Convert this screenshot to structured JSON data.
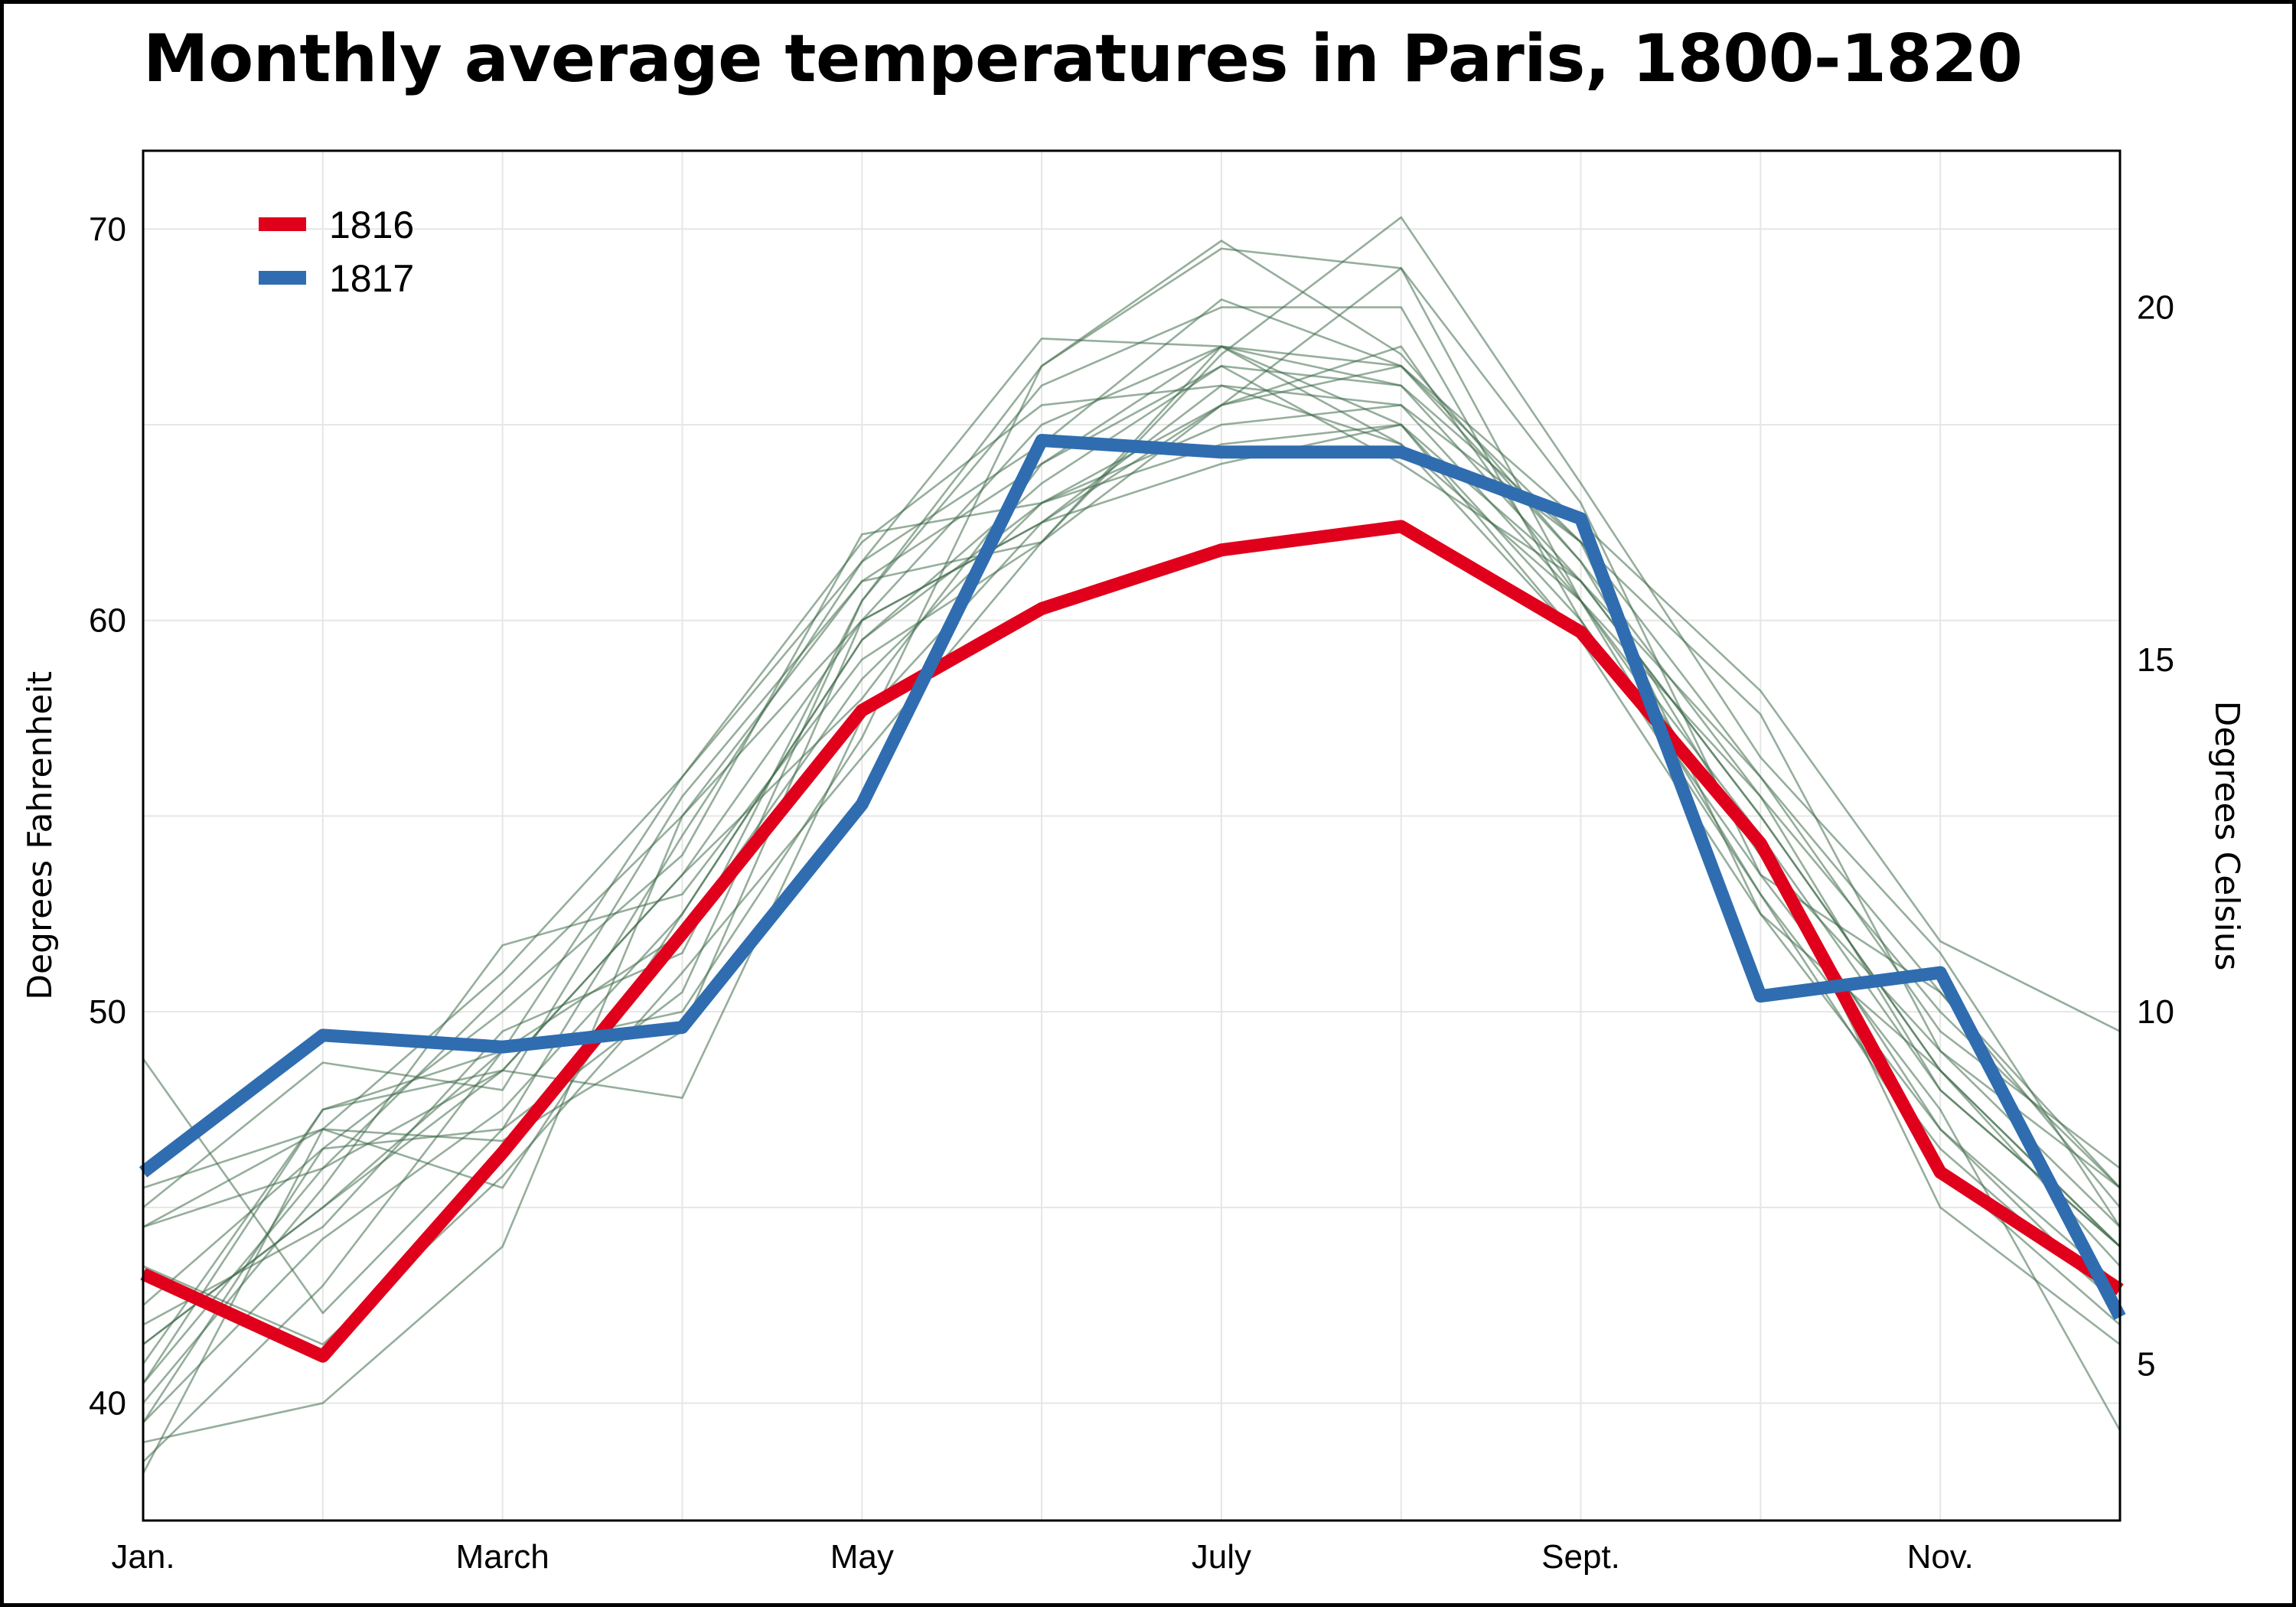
{
  "title": "Monthly average temperatures in Paris, 1800-1820",
  "colors": {
    "highlight_1816": "#e0001b",
    "highlight_1817": "#2f6db0",
    "background_years": "#3f6b4a",
    "gridline": "#e6e6e6",
    "axis": "#000000"
  },
  "chart_data": {
    "type": "line",
    "title": "Monthly average temperatures in Paris, 1800-1820",
    "xlabel": "",
    "ylabel": "Degrees Fahrenheit",
    "y2label": "Degrees Celsius",
    "x_ticks": [
      "Jan.",
      "March",
      "May",
      "July",
      "Sept.",
      "Nov."
    ],
    "x_tick_months": [
      1,
      3,
      5,
      7,
      9,
      11
    ],
    "months": [
      1,
      2,
      3,
      4,
      5,
      6,
      7,
      8,
      9,
      10,
      11,
      12
    ],
    "xlim": [
      1,
      12
    ],
    "ylim": [
      37.0,
      72.0
    ],
    "y_ticks": [
      40,
      50,
      60,
      70
    ],
    "y2_ticks": [
      5,
      10,
      15,
      20
    ],
    "y2_unit": "celsius",
    "grid": true,
    "legend_position": "top-left",
    "highlighted_series": [
      {
        "name": "1816",
        "color_key": "highlight_1816",
        "values": [
          43.3,
          41.2,
          46.4,
          52.0,
          57.7,
          60.3,
          61.8,
          62.4,
          59.7,
          54.3,
          45.9,
          42.9
        ]
      },
      {
        "name": "1817",
        "color_key": "highlight_1817",
        "values": [
          45.9,
          49.4,
          49.1,
          49.6,
          55.3,
          64.6,
          64.3,
          64.3,
          62.6,
          50.4,
          51.0,
          42.2
        ]
      }
    ],
    "background_series": [
      [
        39.5,
        44.2,
        47.5,
        52.5,
        59.5,
        63.5,
        66.5,
        66.0,
        61.0,
        55.0,
        48.5,
        43.5
      ],
      [
        41.5,
        45.0,
        48.5,
        53.5,
        60.0,
        62.5,
        66.0,
        65.5,
        60.5,
        54.0,
        49.0,
        44.5
      ],
      [
        44.5,
        46.0,
        50.5,
        55.0,
        61.0,
        64.0,
        67.0,
        66.0,
        62.0,
        56.0,
        50.5,
        45.0
      ],
      [
        38.5,
        43.0,
        49.0,
        52.0,
        58.5,
        63.0,
        65.5,
        69.0,
        60.5,
        55.5,
        48.0,
        44.0
      ],
      [
        48.8,
        42.3,
        47.0,
        50.5,
        60.5,
        66.5,
        69.7,
        66.8,
        61.5,
        55.5,
        50.0,
        45.5
      ],
      [
        40.0,
        45.5,
        51.7,
        53.0,
        59.0,
        62.0,
        66.8,
        70.3,
        63.5,
        56.5,
        51.5,
        44.5
      ],
      [
        42.5,
        46.5,
        47.0,
        54.5,
        61.5,
        64.5,
        68.2,
        66.5,
        61.5,
        54.0,
        47.0,
        43.0
      ],
      [
        39.0,
        40.0,
        44.0,
        55.0,
        60.0,
        65.0,
        67.0,
        65.0,
        60.0,
        53.0,
        46.0,
        42.0
      ],
      [
        41.0,
        47.5,
        49.0,
        56.0,
        62.0,
        65.5,
        66.0,
        64.5,
        60.5,
        53.0,
        47.0,
        42.5
      ],
      [
        45.5,
        47.0,
        45.5,
        52.5,
        59.5,
        63.0,
        64.5,
        65.0,
        61.0,
        56.0,
        49.5,
        46.0
      ],
      [
        40.5,
        46.0,
        48.5,
        47.8,
        57.5,
        62.5,
        64.0,
        65.0,
        59.5,
        54.5,
        45.0,
        41.5
      ],
      [
        43.5,
        41.5,
        45.8,
        51.0,
        56.5,
        62.0,
        65.5,
        66.5,
        62.5,
        58.2,
        51.8,
        49.5
      ],
      [
        42.0,
        44.5,
        49.5,
        51.5,
        60.5,
        66.0,
        68.0,
        68.0,
        60.0,
        53.5,
        50.5,
        45.5
      ],
      [
        44.5,
        47.0,
        51.0,
        56.0,
        61.5,
        67.2,
        67.0,
        64.5,
        59.5,
        52.5,
        48.5,
        44.0
      ],
      [
        39.5,
        46.5,
        50.0,
        54.0,
        62.2,
        63.0,
        65.0,
        65.5,
        62.0,
        52.5,
        46.5,
        42.5
      ],
      [
        40.5,
        47.5,
        48.5,
        53.5,
        58.0,
        64.0,
        66.5,
        64.0,
        61.0,
        55.0,
        48.5,
        44.0
      ],
      [
        45.0,
        48.7,
        48.0,
        55.5,
        61.0,
        62.0,
        67.0,
        66.5,
        62.0,
        57.6,
        49.0,
        45.5
      ],
      [
        41.5,
        45.0,
        49.0,
        50.0,
        57.0,
        66.5,
        69.5,
        69.0,
        63.0,
        53.5,
        47.5,
        39.3
      ],
      [
        38.2,
        47.0,
        46.7,
        49.5,
        60.0,
        62.5,
        65.5,
        67.0,
        60.5,
        54.5,
        48.0,
        44.0
      ]
    ]
  },
  "legend": [
    {
      "label": "1816",
      "color_key": "highlight_1816"
    },
    {
      "label": "1817",
      "color_key": "highlight_1817"
    }
  ]
}
